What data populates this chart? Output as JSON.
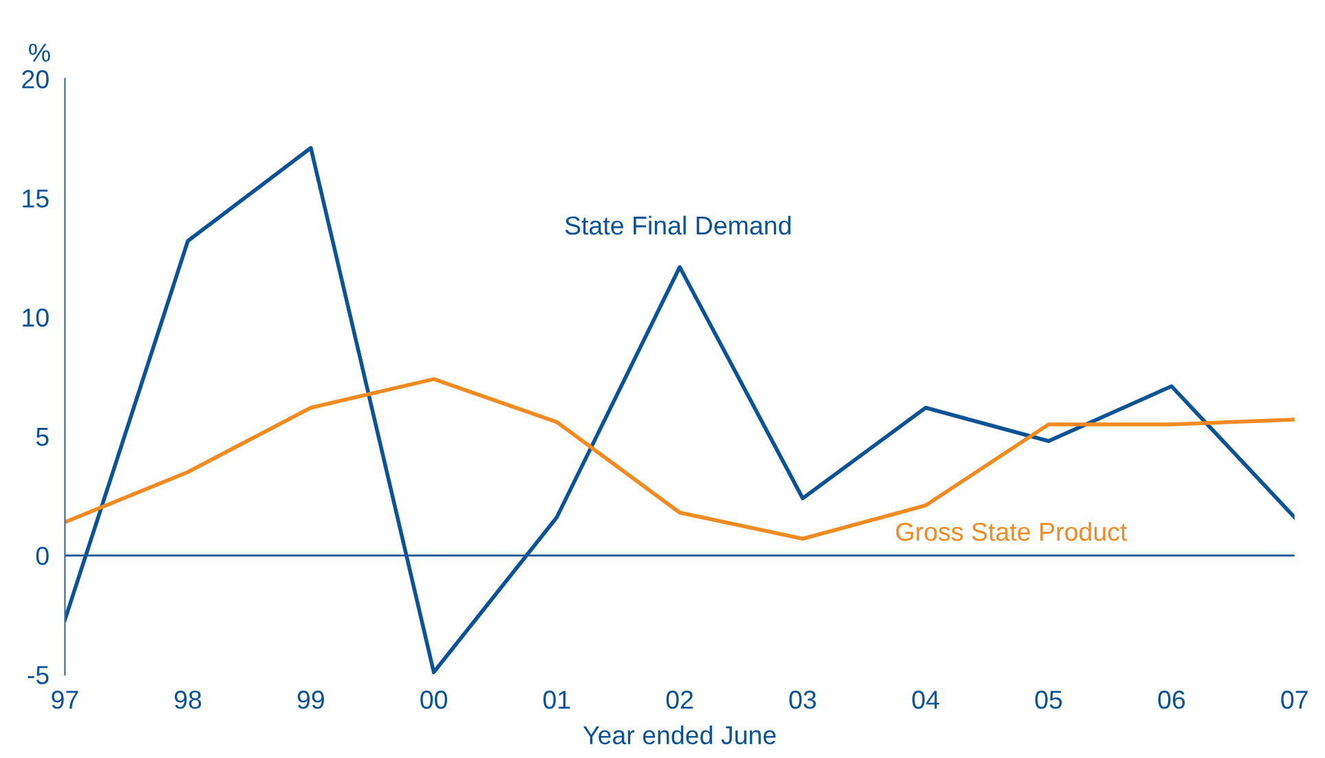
{
  "chart_data": {
    "type": "line",
    "xlabel": "Year ended June",
    "ylabel": "%",
    "categories": [
      "97",
      "98",
      "99",
      "00",
      "01",
      "02",
      "03",
      "04",
      "05",
      "06",
      "07"
    ],
    "series": [
      {
        "name": "State Final Demand",
        "color": "#0b5394",
        "values": [
          -2.7,
          13.2,
          17.1,
          -4.9,
          1.6,
          12.1,
          2.4,
          6.2,
          4.8,
          7.1,
          1.6
        ]
      },
      {
        "name": "Gross State Product",
        "color": "#f28a22",
        "values": [
          1.4,
          3.5,
          6.2,
          7.4,
          5.6,
          1.8,
          0.7,
          2.1,
          5.5,
          5.5,
          5.7
        ]
      }
    ],
    "ylim": [
      -5,
      20
    ],
    "yticks": [
      -5,
      0,
      5,
      10,
      15,
      20
    ],
    "ref_lines": [
      {
        "axis": "y",
        "value": 0,
        "color": "#0b5394"
      }
    ],
    "grid": false,
    "legend": false,
    "marker": "none",
    "line_style": "solid"
  }
}
